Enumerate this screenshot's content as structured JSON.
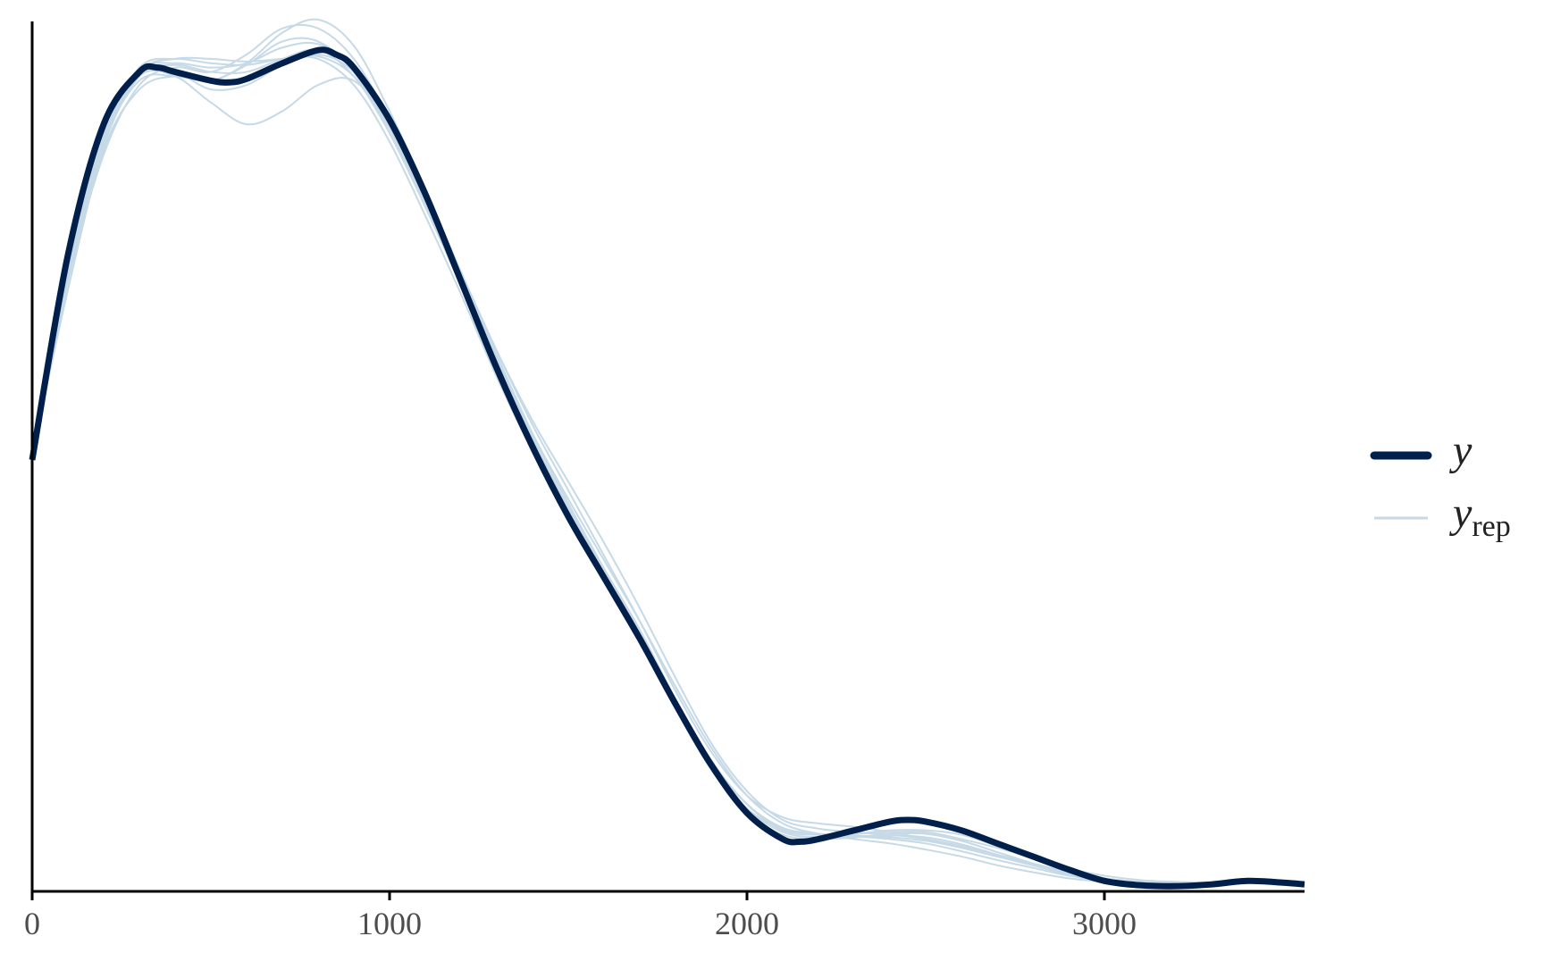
{
  "chart_data": {
    "type": "line",
    "title": "",
    "xlabel": "",
    "ylabel": "",
    "xlim": [
      0,
      3560
    ],
    "ylim": [
      0,
      1.0
    ],
    "x_ticks": [
      0,
      1000,
      2000,
      3000
    ],
    "x_tick_labels": [
      "0",
      "1000",
      "2000",
      "3000"
    ],
    "grid": false,
    "legend": {
      "placement": "right",
      "entries": [
        {
          "label": "y",
          "subscript": ""
        },
        {
          "label": "y",
          "subscript": "rep"
        }
      ]
    },
    "colors": {
      "y": "#011f4b",
      "y_rep": "#c6d9e6",
      "axis": "#000000"
    },
    "series_y": {
      "x": [
        0,
        100,
        200,
        300,
        350,
        400,
        500,
        550,
        600,
        700,
        800,
        850,
        900,
        1000,
        1100,
        1200,
        1300,
        1400,
        1500,
        1600,
        1700,
        1800,
        1900,
        2000,
        2100,
        2150,
        2200,
        2300,
        2400,
        2450,
        2500,
        2600,
        2700,
        2800,
        2900,
        3000,
        3100,
        3200,
        3300,
        3400,
        3500,
        3560
      ],
      "y": [
        0.495,
        0.73,
        0.88,
        0.94,
        0.945,
        0.94,
        0.93,
        0.928,
        0.932,
        0.95,
        0.965,
        0.96,
        0.945,
        0.885,
        0.8,
        0.7,
        0.6,
        0.51,
        0.43,
        0.36,
        0.29,
        0.215,
        0.145,
        0.09,
        0.06,
        0.057,
        0.06,
        0.07,
        0.08,
        0.082,
        0.08,
        0.07,
        0.055,
        0.04,
        0.025,
        0.012,
        0.007,
        0.006,
        0.008,
        0.012,
        0.01,
        0.008
      ]
    },
    "series_y_rep": [
      {
        "x": [
          0,
          100,
          200,
          300,
          400,
          500,
          600,
          700,
          800,
          900,
          1000,
          1100,
          1200,
          1300,
          1400,
          1500,
          1600,
          1700,
          1800,
          1900,
          2000,
          2100,
          2200,
          2300,
          2400,
          2500,
          2600,
          2700,
          2800,
          2900,
          3000,
          3100,
          3200,
          3300,
          3400,
          3500,
          3560
        ],
        "y": [
          0.5,
          0.72,
          0.86,
          0.94,
          0.955,
          0.955,
          0.952,
          0.955,
          0.958,
          0.935,
          0.875,
          0.79,
          0.7,
          0.61,
          0.52,
          0.44,
          0.37,
          0.3,
          0.22,
          0.15,
          0.1,
          0.072,
          0.066,
          0.064,
          0.062,
          0.058,
          0.05,
          0.04,
          0.03,
          0.02,
          0.014,
          0.011,
          0.01,
          0.01,
          0.011,
          0.011,
          0.01
        ]
      },
      {
        "x": [
          0,
          100,
          200,
          300,
          400,
          500,
          600,
          700,
          800,
          900,
          1000,
          1100,
          1200,
          1300,
          1400,
          1500,
          1600,
          1700,
          1800,
          1900,
          2000,
          2100,
          2200,
          2300,
          2400,
          2500,
          2600,
          2700,
          2800,
          2900,
          3000,
          3100,
          3200,
          3300,
          3400,
          3500,
          3560
        ],
        "y": [
          0.5,
          0.69,
          0.85,
          0.92,
          0.935,
          0.93,
          0.95,
          0.985,
          1.0,
          0.97,
          0.895,
          0.805,
          0.71,
          0.615,
          0.525,
          0.445,
          0.37,
          0.295,
          0.215,
          0.145,
          0.095,
          0.072,
          0.066,
          0.066,
          0.068,
          0.068,
          0.06,
          0.05,
          0.038,
          0.026,
          0.018,
          0.013,
          0.011,
          0.01,
          0.01,
          0.01,
          0.01
        ]
      },
      {
        "x": [
          0,
          100,
          200,
          300,
          400,
          500,
          600,
          700,
          800,
          900,
          1000,
          1100,
          1200,
          1300,
          1400,
          1500,
          1600,
          1700,
          1800,
          1900,
          2000,
          2100,
          2200,
          2300,
          2400,
          2500,
          2600,
          2700,
          2800,
          2900,
          3000,
          3100,
          3200,
          3300,
          3400,
          3500,
          3560
        ],
        "y": [
          0.5,
          0.71,
          0.86,
          0.935,
          0.935,
          0.905,
          0.88,
          0.895,
          0.925,
          0.93,
          0.88,
          0.8,
          0.71,
          0.62,
          0.535,
          0.46,
          0.385,
          0.31,
          0.23,
          0.16,
          0.11,
          0.085,
          0.078,
          0.074,
          0.068,
          0.06,
          0.05,
          0.04,
          0.03,
          0.02,
          0.013,
          0.01,
          0.009,
          0.01,
          0.012,
          0.012,
          0.011
        ]
      },
      {
        "x": [
          0,
          100,
          200,
          300,
          400,
          500,
          600,
          700,
          800,
          900,
          1000,
          1100,
          1200,
          1300,
          1400,
          1500,
          1600,
          1700,
          1800,
          1900,
          2000,
          2100,
          2200,
          2300,
          2400,
          2500,
          2600,
          2700,
          2800,
          2900,
          3000,
          3100,
          3200,
          3300,
          3400,
          3500,
          3560
        ],
        "y": [
          0.5,
          0.7,
          0.855,
          0.935,
          0.948,
          0.94,
          0.94,
          0.955,
          0.965,
          0.935,
          0.87,
          0.79,
          0.7,
          0.61,
          0.525,
          0.45,
          0.38,
          0.31,
          0.235,
          0.165,
          0.11,
          0.078,
          0.066,
          0.06,
          0.055,
          0.048,
          0.04,
          0.03,
          0.022,
          0.015,
          0.011,
          0.009,
          0.009,
          0.01,
          0.011,
          0.011,
          0.011
        ]
      },
      {
        "x": [
          0,
          100,
          200,
          300,
          400,
          500,
          600,
          700,
          800,
          900,
          1000,
          1100,
          1200,
          1300,
          1400,
          1500,
          1600,
          1700,
          1800,
          1900,
          2000,
          2100,
          2200,
          2300,
          2400,
          2500,
          2600,
          2700,
          2800,
          2900,
          3000,
          3100,
          3200,
          3300,
          3400,
          3500,
          3560
        ],
        "y": [
          0.5,
          0.72,
          0.86,
          0.93,
          0.935,
          0.93,
          0.948,
          0.975,
          0.975,
          0.94,
          0.87,
          0.785,
          0.695,
          0.6,
          0.515,
          0.44,
          0.37,
          0.3,
          0.22,
          0.15,
          0.1,
          0.07,
          0.065,
          0.066,
          0.07,
          0.07,
          0.065,
          0.052,
          0.038,
          0.024,
          0.015,
          0.01,
          0.008,
          0.009,
          0.011,
          0.012,
          0.011
        ]
      },
      {
        "x": [
          0,
          100,
          200,
          300,
          400,
          500,
          600,
          700,
          800,
          900,
          1000,
          1100,
          1200,
          1300,
          1400,
          1500,
          1600,
          1700,
          1800,
          1900,
          2000,
          2100,
          2200,
          2300,
          2400,
          2500,
          2600,
          2700,
          2800,
          2900,
          3000,
          3100,
          3200,
          3300,
          3400,
          3500,
          3560
        ],
        "y": [
          0.5,
          0.705,
          0.855,
          0.94,
          0.95,
          0.945,
          0.95,
          0.968,
          0.972,
          0.945,
          0.885,
          0.8,
          0.705,
          0.61,
          0.52,
          0.44,
          0.365,
          0.29,
          0.21,
          0.14,
          0.09,
          0.065,
          0.06,
          0.062,
          0.066,
          0.066,
          0.058,
          0.045,
          0.032,
          0.02,
          0.013,
          0.01,
          0.009,
          0.01,
          0.012,
          0.012,
          0.011
        ]
      },
      {
        "x": [
          0,
          100,
          200,
          300,
          400,
          500,
          600,
          700,
          800,
          900,
          1000,
          1100,
          1200,
          1300,
          1400,
          1500,
          1600,
          1700,
          1800,
          1900,
          2000,
          2100,
          2200,
          2300,
          2400,
          2500,
          2600,
          2700,
          2800,
          2900,
          3000,
          3100,
          3200,
          3300,
          3400,
          3500,
          3560
        ],
        "y": [
          0.5,
          0.725,
          0.87,
          0.945,
          0.955,
          0.95,
          0.948,
          0.955,
          0.955,
          0.925,
          0.86,
          0.775,
          0.685,
          0.59,
          0.505,
          0.43,
          0.36,
          0.29,
          0.215,
          0.148,
          0.1,
          0.073,
          0.066,
          0.063,
          0.06,
          0.055,
          0.046,
          0.036,
          0.027,
          0.018,
          0.012,
          0.009,
          0.008,
          0.009,
          0.011,
          0.011,
          0.01
        ]
      },
      {
        "x": [
          0,
          100,
          200,
          300,
          400,
          500,
          600,
          700,
          800,
          900,
          1000,
          1100,
          1200,
          1300,
          1400,
          1500,
          1600,
          1700,
          1800,
          1900,
          2000,
          2100,
          2200,
          2300,
          2400,
          2500,
          2600,
          2700,
          2800,
          2900,
          3000,
          3100,
          3200,
          3300,
          3400,
          3500,
          3560
        ],
        "y": [
          0.5,
          0.7,
          0.845,
          0.925,
          0.945,
          0.94,
          0.96,
          0.99,
          0.99,
          0.955,
          0.885,
          0.8,
          0.71,
          0.615,
          0.525,
          0.445,
          0.37,
          0.295,
          0.215,
          0.145,
          0.095,
          0.068,
          0.062,
          0.062,
          0.064,
          0.062,
          0.054,
          0.042,
          0.03,
          0.02,
          0.013,
          0.01,
          0.009,
          0.01,
          0.011,
          0.012,
          0.011
        ]
      },
      {
        "x": [
          0,
          100,
          200,
          300,
          400,
          500,
          600,
          700,
          800,
          900,
          1000,
          1100,
          1200,
          1300,
          1400,
          1500,
          1600,
          1700,
          1800,
          1900,
          2000,
          2100,
          2200,
          2300,
          2400,
          2500,
          2600,
          2700,
          2800,
          2900,
          3000,
          3100,
          3200,
          3300,
          3400,
          3500,
          3560
        ],
        "y": [
          0.5,
          0.715,
          0.865,
          0.94,
          0.94,
          0.92,
          0.925,
          0.948,
          0.96,
          0.94,
          0.88,
          0.8,
          0.71,
          0.62,
          0.54,
          0.47,
          0.4,
          0.325,
          0.245,
          0.17,
          0.115,
          0.082,
          0.072,
          0.068,
          0.065,
          0.06,
          0.052,
          0.042,
          0.032,
          0.022,
          0.015,
          0.011,
          0.01,
          0.01,
          0.011,
          0.011,
          0.011
        ]
      }
    ]
  }
}
